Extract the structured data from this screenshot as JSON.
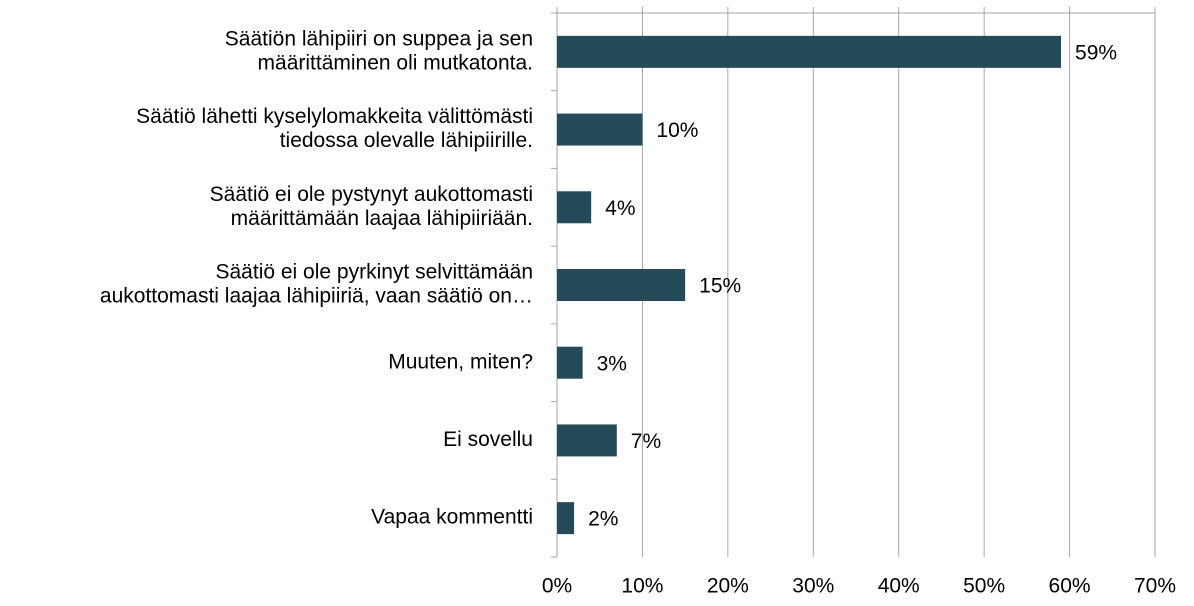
{
  "chart_data": {
    "type": "bar",
    "orientation": "horizontal",
    "categories": [
      [
        "Säätiön lähipiiri on suppea ja sen",
        "määrittäminen oli mutkatonta."
      ],
      [
        "Säätiö lähetti kyselylomakkeita välittömästi",
        "tiedossa olevalle lähipiirille."
      ],
      [
        "Säätiö ei ole pystynyt aukottomasti",
        "määrittämään laajaa lähipiiriään."
      ],
      [
        "Säätiö ei ole pyrkinyt selvittämään",
        "aukottomasti laajaa lähipiiriä, vaan säätiö on…"
      ],
      [
        "Muuten, miten?"
      ],
      [
        "Ei sovellu"
      ],
      [
        "Vapaa kommentti"
      ]
    ],
    "values": [
      59,
      10,
      4,
      15,
      3,
      7,
      2
    ],
    "value_labels": [
      "59%",
      "10%",
      "4%",
      "15%",
      "3%",
      "7%",
      "2%"
    ],
    "color": "#254b5a",
    "xlim": [
      0,
      70
    ],
    "xticks": [
      {
        "value": 0,
        "label": "0%"
      },
      {
        "value": 10,
        "label": "10%"
      },
      {
        "value": 20,
        "label": "20%"
      },
      {
        "value": 30,
        "label": "30%"
      },
      {
        "value": 40,
        "label": "40%"
      },
      {
        "value": 50,
        "label": "50%"
      },
      {
        "value": 60,
        "label": "60%"
      },
      {
        "value": 70,
        "label": "70%"
      }
    ],
    "grid": true
  }
}
